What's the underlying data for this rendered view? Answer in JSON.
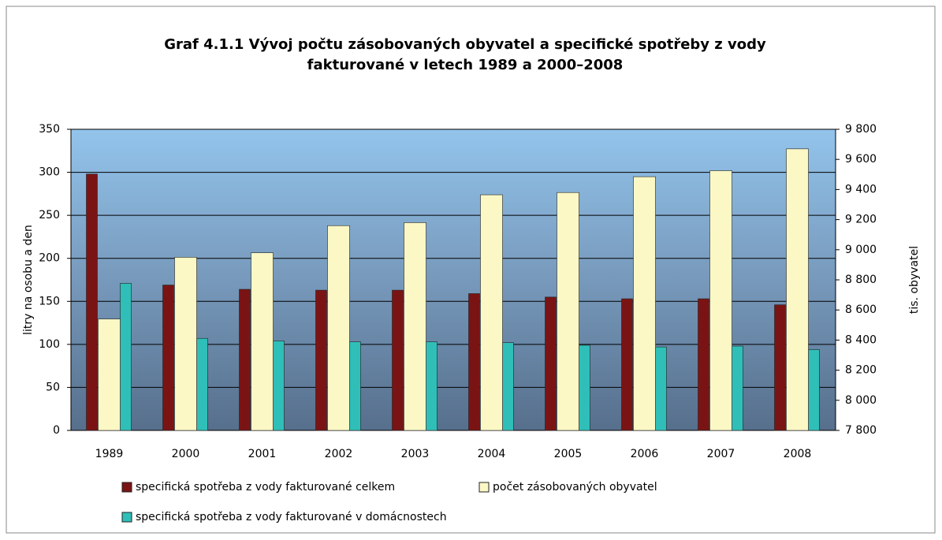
{
  "chart_data": {
    "type": "bar",
    "title": "Graf 4.1.1 Vývoj počtu zásobovaných obyvatel a specifické spotřeby z vody fakturované v letech 1989 a 2000–2008",
    "categories": [
      "1989",
      "2000",
      "2001",
      "2002",
      "2003",
      "2004",
      "2005",
      "2006",
      "2007",
      "2008"
    ],
    "series": [
      {
        "name": "specifická spotřeba z vody fakturované celkem",
        "color": "#7a1414",
        "values": [
          298,
          169,
          164,
          163,
          163,
          159,
          155,
          153,
          153,
          146
        ]
      },
      {
        "name": "počet zásobovaných obyvatel",
        "color": "#fbf8c6",
        "axis": "y2",
        "values": [
          8540,
          8950,
          8980,
          9160,
          9180,
          9365,
          9380,
          9485,
          9525,
          9670
        ]
      },
      {
        "name": "specifická spotřeba z vody fakturované v domácnostech",
        "color": "#2fbfb8",
        "values": [
          171,
          107,
          104,
          103,
          103,
          102,
          99,
          97,
          98,
          94
        ]
      }
    ],
    "ylabel": "litry na osobu a den",
    "y2label": "tis. obyvatel",
    "ylim": [
      0,
      350
    ],
    "yticks": [
      0,
      50,
      100,
      150,
      200,
      250,
      300,
      350
    ],
    "y2lim": [
      7800,
      9800
    ],
    "y2ticks": [
      {
        "value": 7800,
        "label": "7 800"
      },
      {
        "value": 8000,
        "label": "8 000"
      },
      {
        "value": 8200,
        "label": "8 200"
      },
      {
        "value": 8400,
        "label": "8 400"
      },
      {
        "value": 8600,
        "label": "8 600"
      },
      {
        "value": 8800,
        "label": "8 800"
      },
      {
        "value": 9000,
        "label": "9 000"
      },
      {
        "value": 9200,
        "label": "9 200"
      },
      {
        "value": 9400,
        "label": "9 400"
      },
      {
        "value": 9600,
        "label": "9 600"
      },
      {
        "value": 9800,
        "label": "9 800"
      }
    ],
    "grid": true
  }
}
